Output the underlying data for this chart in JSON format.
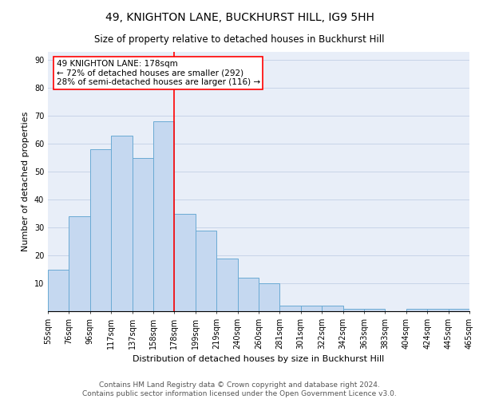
{
  "title1": "49, KNIGHTON LANE, BUCKHURST HILL, IG9 5HH",
  "title2": "Size of property relative to detached houses in Buckhurst Hill",
  "xlabel": "Distribution of detached houses by size in Buckhurst Hill",
  "ylabel": "Number of detached properties",
  "categories": [
    "55sqm",
    "76sqm",
    "96sqm",
    "117sqm",
    "137sqm",
    "158sqm",
    "178sqm",
    "199sqm",
    "219sqm",
    "240sqm",
    "260sqm",
    "281sqm",
    "301sqm",
    "322sqm",
    "342sqm",
    "363sqm",
    "383sqm",
    "404sqm",
    "424sqm",
    "445sqm",
    "465sqm"
  ],
  "values": [
    15,
    34,
    58,
    63,
    55,
    68,
    35,
    29,
    19,
    12,
    10,
    2,
    2,
    2,
    1,
    1,
    0,
    1,
    1,
    1
  ],
  "bar_color": "#c5d8f0",
  "bar_edge_color": "#6aaad4",
  "vline_color": "red",
  "annotation_text": "49 KNIGHTON LANE: 178sqm\n← 72% of detached houses are smaller (292)\n28% of semi-detached houses are larger (116) →",
  "annotation_box_color": "white",
  "annotation_box_edge_color": "red",
  "ylim": [
    0,
    93
  ],
  "yticks": [
    0,
    10,
    20,
    30,
    40,
    50,
    60,
    70,
    80,
    90
  ],
  "grid_color": "#c8d4e8",
  "background_color": "#e8eef8",
  "footer_text": "Contains HM Land Registry data © Crown copyright and database right 2024.\nContains public sector information licensed under the Open Government Licence v3.0.",
  "title1_fontsize": 10,
  "title2_fontsize": 8.5,
  "xlabel_fontsize": 8,
  "ylabel_fontsize": 8,
  "tick_fontsize": 7,
  "annotation_fontsize": 7.5,
  "footer_fontsize": 6.5
}
